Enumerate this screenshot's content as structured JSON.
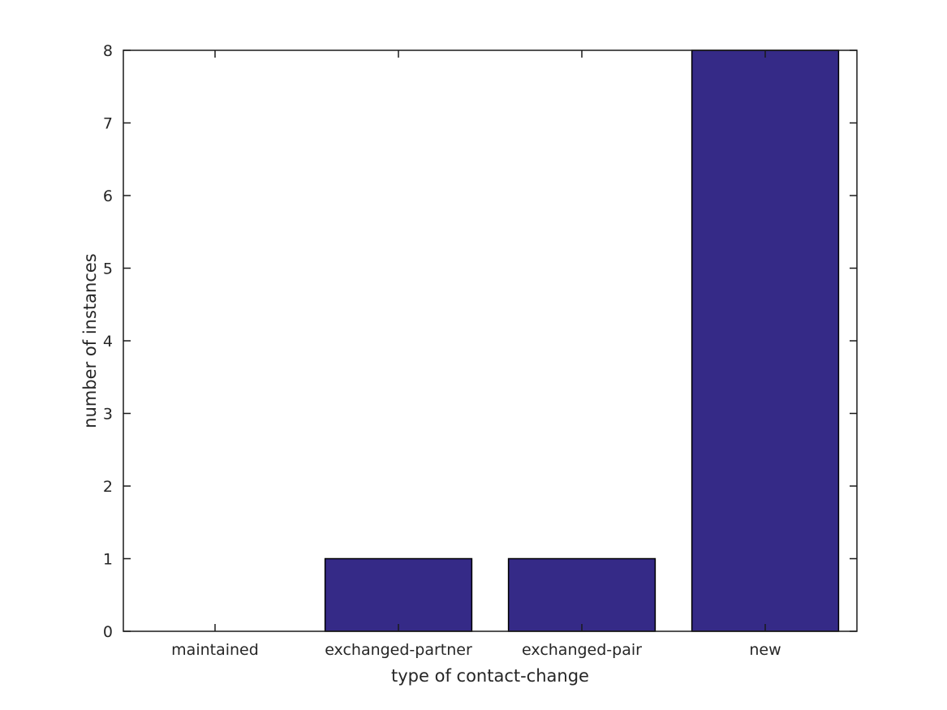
{
  "chart_data": {
    "type": "bar",
    "title": "",
    "xlabel": "type of contact-change",
    "ylabel": "number of instances",
    "categories": [
      "maintained",
      "exchanged-partner",
      "exchanged-pair",
      "new"
    ],
    "values": [
      0,
      1,
      1,
      8
    ],
    "ylim": [
      0,
      8
    ],
    "yticks": [
      0,
      1,
      2,
      3,
      4,
      5,
      6,
      7,
      8
    ],
    "bar_width_fraction": 0.8,
    "grid": false,
    "legend_position": "none",
    "box": true,
    "ticks_direction": "in",
    "colors": {
      "bar_fill": "#352a87",
      "bar_edge": "#000000",
      "axis": "#1a1a1a",
      "text": "#262626",
      "background": "#ffffff"
    }
  }
}
